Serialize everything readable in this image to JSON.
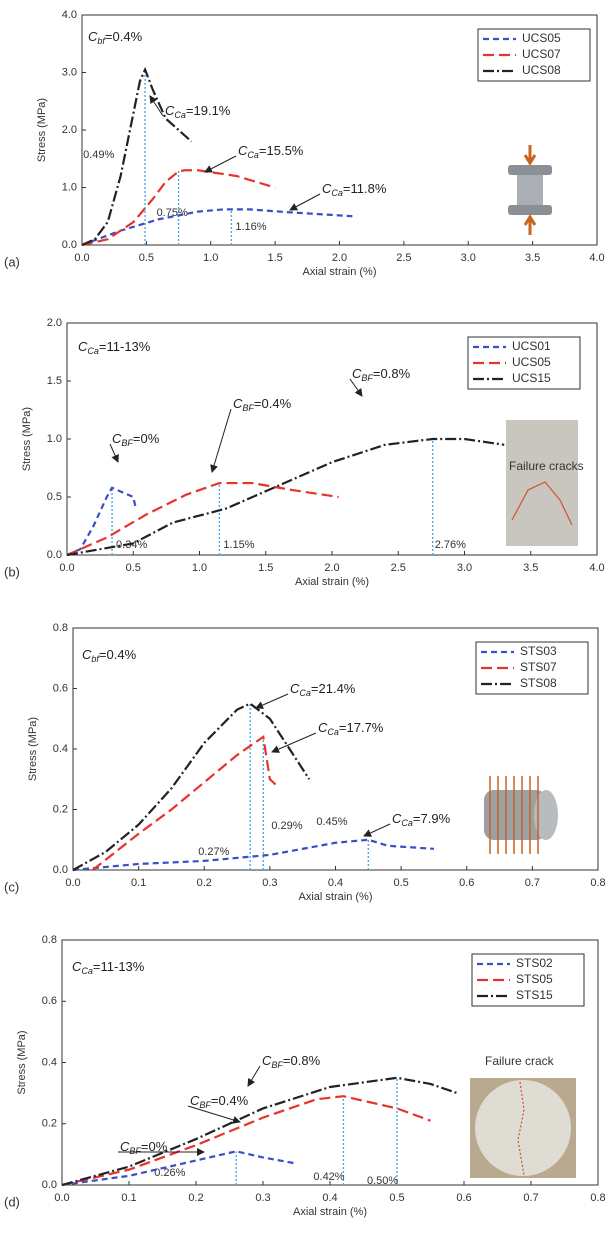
{
  "chart_data": [
    {
      "type": "line",
      "panel": "(a)",
      "x_label": "Axial strain  (%)",
      "y_label": "Stress  (MPa)",
      "xlim": [
        0,
        4
      ],
      "ylim": [
        0,
        4
      ],
      "xticks": [
        {
          "value": 0,
          "label": "0.0"
        },
        0.5,
        {
          "value": 1,
          "label": "1.0"
        },
        1.5,
        {
          "value": 2,
          "label": "2.0"
        },
        2.5,
        {
          "value": 3,
          "label": "3.0"
        },
        3.5,
        {
          "value": 4,
          "label": "4.0"
        }
      ],
      "yticks": [
        {
          "value": 0,
          "label": "0.0"
        },
        {
          "value": 1,
          "label": "1.0"
        },
        {
          "value": 2,
          "label": "2.0"
        },
        {
          "value": 3,
          "label": "3.0"
        },
        {
          "value": 4,
          "label": "4.0"
        }
      ],
      "series": [
        {
          "name": "UCS05",
          "color": "#3a4fc4",
          "style": "dashed",
          "x": [
            0,
            0.3,
            0.6,
            0.9,
            1.1,
            1.3,
            1.6,
            2.1
          ],
          "values": [
            0,
            0.25,
            0.45,
            0.58,
            0.62,
            0.62,
            0.57,
            0.5
          ]
        },
        {
          "name": "UCS07",
          "color": "#e8322e",
          "style": "longdash",
          "x": [
            0,
            0.2,
            0.4,
            0.55,
            0.65,
            0.75,
            0.8,
            0.9,
            1.2,
            1.5
          ],
          "values": [
            0,
            0.1,
            0.4,
            0.8,
            1.1,
            1.28,
            1.3,
            1.3,
            1.2,
            1.0
          ]
        },
        {
          "name": "UCS08",
          "color": "#222222",
          "style": "dashdot",
          "x": [
            0,
            0.1,
            0.2,
            0.3,
            0.4,
            0.45,
            0.49,
            0.55,
            0.65,
            0.85
          ],
          "values": [
            0,
            0.1,
            0.4,
            1.2,
            2.3,
            2.85,
            3.05,
            2.7,
            2.2,
            1.8
          ]
        }
      ],
      "peaks": [
        {
          "x": 0.49,
          "y": 3.05,
          "label": "0.49%"
        },
        {
          "x": 0.75,
          "y": 1.3,
          "label": "0.75%"
        },
        {
          "x": 1.16,
          "y": 0.62,
          "label": "1.16%"
        }
      ],
      "annotations": [
        {
          "symbol": "C",
          "subscript": "bf",
          "text": "=0.4%"
        },
        {
          "symbol": "C",
          "subscript": "Ca",
          "text": "=19.1%"
        },
        {
          "symbol": "C",
          "subscript": "Ca",
          "text": "=15.5%"
        },
        {
          "symbol": "C",
          "subscript": "Ca",
          "text": "=11.8%"
        }
      ]
    },
    {
      "type": "line",
      "panel": "(b)",
      "x_label": "Axial strain  (%)",
      "y_label": "Stress  (MPa)",
      "xlim": [
        0,
        4
      ],
      "ylim": [
        0,
        2
      ],
      "xticks": [
        {
          "value": 0,
          "label": "0.0"
        },
        0.5,
        {
          "value": 1,
          "label": "1.0"
        },
        1.5,
        {
          "value": 2,
          "label": "2.0"
        },
        2.5,
        {
          "value": 3,
          "label": "3.0"
        },
        3.5,
        {
          "value": 4,
          "label": "4.0"
        }
      ],
      "yticks": [
        {
          "value": 0,
          "label": "0.0"
        },
        0.5,
        {
          "value": 1,
          "label": "1.0"
        },
        1.5,
        {
          "value": 2,
          "label": "2.0"
        }
      ],
      "series": [
        {
          "name": "UCS01",
          "color": "#3a4fc4",
          "style": "dashed",
          "x": [
            0,
            0.1,
            0.2,
            0.3,
            0.34,
            0.4,
            0.5,
            0.52
          ],
          "values": [
            0,
            0.05,
            0.25,
            0.5,
            0.58,
            0.55,
            0.5,
            0.4
          ]
        },
        {
          "name": "UCS05",
          "color": "#e8322e",
          "style": "longdash",
          "x": [
            0,
            0.3,
            0.6,
            0.9,
            1.15,
            1.4,
            1.7,
            2.05
          ],
          "values": [
            0,
            0.15,
            0.35,
            0.52,
            0.62,
            0.62,
            0.56,
            0.5
          ]
        },
        {
          "name": "UCS15",
          "color": "#222222",
          "style": "dashdot",
          "x": [
            0,
            0.5,
            0.8,
            1.2,
            1.6,
            2.0,
            2.4,
            2.76,
            3.0,
            3.3
          ],
          "values": [
            0,
            0.1,
            0.28,
            0.4,
            0.6,
            0.8,
            0.95,
            1.0,
            1.0,
            0.95
          ]
        }
      ],
      "peaks": [
        {
          "x": 0.34,
          "y": 0.58,
          "label": "0.34%"
        },
        {
          "x": 1.15,
          "y": 0.62,
          "label": "1.15%"
        },
        {
          "x": 2.76,
          "y": 1.0,
          "label": "2.76%"
        }
      ],
      "annotations": [
        {
          "symbol": "C",
          "subscript": "Ca",
          "text": "=11-13%"
        },
        {
          "symbol": "C",
          "subscript": "BF",
          "text": "=0%"
        },
        {
          "symbol": "C",
          "subscript": "BF",
          "text": "=0.4%"
        },
        {
          "symbol": "C",
          "subscript": "BF",
          "text": "=0.8%"
        }
      ],
      "image_caption": "Failure cracks"
    },
    {
      "type": "line",
      "panel": "(c)",
      "x_label": "Axial strain  (%)",
      "y_label": "Stress  (MPa)",
      "xlim": [
        0,
        0.8
      ],
      "ylim": [
        0,
        0.8
      ],
      "xticks": [
        {
          "value": 0,
          "label": "0.0"
        },
        0.1,
        0.2,
        0.3,
        0.4,
        0.5,
        0.6,
        0.7,
        0.8
      ],
      "yticks": [
        {
          "value": 0,
          "label": "0.0"
        },
        0.2,
        0.4,
        0.6,
        0.8
      ],
      "series": [
        {
          "name": "STS03",
          "color": "#3a4fc4",
          "style": "dashed",
          "x": [
            0,
            0.1,
            0.2,
            0.3,
            0.4,
            0.45,
            0.48,
            0.55
          ],
          "values": [
            0,
            0.02,
            0.03,
            0.05,
            0.09,
            0.1,
            0.08,
            0.07
          ]
        },
        {
          "name": "STS07",
          "color": "#e8322e",
          "style": "longdash",
          "x": [
            0.03,
            0.1,
            0.15,
            0.2,
            0.25,
            0.29,
            0.3,
            0.31
          ],
          "values": [
            0,
            0.12,
            0.2,
            0.29,
            0.38,
            0.44,
            0.3,
            0.28
          ]
        },
        {
          "name": "STS08",
          "color": "#222222",
          "style": "dashdot",
          "x": [
            0,
            0.05,
            0.1,
            0.15,
            0.2,
            0.25,
            0.27,
            0.3,
            0.33,
            0.36
          ],
          "values": [
            0,
            0.06,
            0.15,
            0.27,
            0.42,
            0.53,
            0.55,
            0.5,
            0.4,
            0.3
          ]
        }
      ],
      "peaks": [
        {
          "x": 0.27,
          "y": 0.55,
          "label": "0.27%"
        },
        {
          "x": 0.29,
          "y": 0.44,
          "label": "0.29%"
        },
        {
          "x": 0.45,
          "y": 0.1,
          "label": "0.45%"
        }
      ],
      "annotations": [
        {
          "symbol": "C",
          "subscript": "bf",
          "text": "=0.4%"
        },
        {
          "symbol": "C",
          "subscript": "Ca",
          "text": "=21.4%"
        },
        {
          "symbol": "C",
          "subscript": "Ca",
          "text": "=17.7%"
        },
        {
          "symbol": "C",
          "subscript": "Ca",
          "text": "=7.9%"
        }
      ]
    },
    {
      "type": "line",
      "panel": "(d)",
      "x_label": "Axial strain  (%)",
      "y_label": "Stress  (MPa)",
      "xlim": [
        0,
        0.8
      ],
      "ylim": [
        0,
        0.8
      ],
      "xticks": [
        {
          "value": 0,
          "label": "0.0"
        },
        0.1,
        0.2,
        0.3,
        0.4,
        0.5,
        0.6,
        0.7,
        0.8
      ],
      "yticks": [
        {
          "value": 0,
          "label": "0.0"
        },
        0.2,
        0.4,
        0.6,
        0.8
      ],
      "series": [
        {
          "name": "STS02",
          "color": "#3a4fc4",
          "style": "dashed",
          "x": [
            0,
            0.1,
            0.2,
            0.26,
            0.3,
            0.35
          ],
          "values": [
            0,
            0.03,
            0.08,
            0.11,
            0.09,
            0.07
          ]
        },
        {
          "name": "STS05",
          "color": "#e8322e",
          "style": "longdash",
          "x": [
            0,
            0.1,
            0.2,
            0.3,
            0.38,
            0.42,
            0.5,
            0.55
          ],
          "values": [
            0,
            0.05,
            0.13,
            0.22,
            0.28,
            0.29,
            0.25,
            0.21
          ]
        },
        {
          "name": "STS15",
          "color": "#222222",
          "style": "dashdot",
          "x": [
            0,
            0.1,
            0.2,
            0.3,
            0.4,
            0.5,
            0.55,
            0.59
          ],
          "values": [
            0,
            0.06,
            0.15,
            0.25,
            0.32,
            0.35,
            0.33,
            0.3
          ]
        }
      ],
      "peaks": [
        {
          "x": 0.26,
          "y": 0.11,
          "label": "0.26%"
        },
        {
          "x": 0.42,
          "y": 0.29,
          "label": "0.42%"
        },
        {
          "x": 0.5,
          "y": 0.35,
          "label": "0.50%"
        }
      ],
      "annotations": [
        {
          "symbol": "C",
          "subscript": "Ca",
          "text": "=11-13%"
        },
        {
          "symbol": "C",
          "subscript": "BF",
          "text": "=0%"
        },
        {
          "symbol": "C",
          "subscript": "BF",
          "text": "=0.4%"
        },
        {
          "symbol": "C",
          "subscript": "BF",
          "text": "=0.8%"
        }
      ],
      "image_caption": "Failure crack"
    }
  ]
}
